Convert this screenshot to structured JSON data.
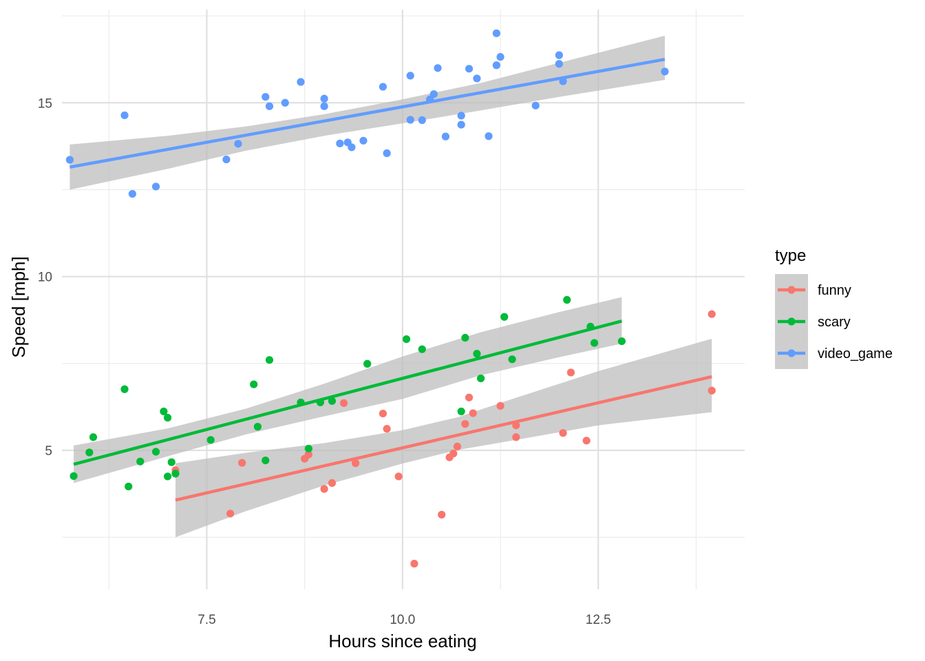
{
  "chart_data": {
    "type": "scatter",
    "title": "",
    "xlabel": "Hours since eating",
    "ylabel": "Speed [mph]",
    "xlim": [
      5.65,
      14.37
    ],
    "ylim": [
      1.0,
      17.68
    ],
    "x_ticks": [
      7.5,
      10.0,
      12.5
    ],
    "x_tick_labels": [
      "7.5",
      "10.0",
      "12.5"
    ],
    "y_ticks": [
      5,
      10,
      15
    ],
    "y_tick_labels": [
      "5",
      "10",
      "15"
    ],
    "grid": true,
    "legend": {
      "title": "type",
      "position": "right",
      "entries": [
        "funny",
        "scary",
        "video_game"
      ]
    },
    "confidence_band_color": "#bebebe",
    "series": [
      {
        "name": "funny",
        "color": "#F8766D",
        "points": [
          [
            7.1,
            4.43
          ],
          [
            7.8,
            3.18
          ],
          [
            7.95,
            4.64
          ],
          [
            8.75,
            4.76
          ],
          [
            8.8,
            4.88
          ],
          [
            9.0,
            3.89
          ],
          [
            9.1,
            4.06
          ],
          [
            9.25,
            6.36
          ],
          [
            9.4,
            4.63
          ],
          [
            9.75,
            6.06
          ],
          [
            9.8,
            5.62
          ],
          [
            9.95,
            4.25
          ],
          [
            10.15,
            1.74
          ],
          [
            10.5,
            3.15
          ],
          [
            10.6,
            4.8
          ],
          [
            10.65,
            4.91
          ],
          [
            10.7,
            5.11
          ],
          [
            10.8,
            5.76
          ],
          [
            10.85,
            6.52
          ],
          [
            10.9,
            6.07
          ],
          [
            11.25,
            6.28
          ],
          [
            11.45,
            5.72
          ],
          [
            11.45,
            5.38
          ],
          [
            12.05,
            5.5
          ],
          [
            12.15,
            7.24
          ],
          [
            12.35,
            5.28
          ],
          [
            13.95,
            8.92
          ],
          [
            13.95,
            6.72
          ]
        ],
        "fit_line": [
          [
            7.1,
            3.57
          ],
          [
            13.95,
            7.12
          ]
        ],
        "band_upper": [
          [
            7.1,
            4.63
          ],
          [
            8.0,
            4.93
          ],
          [
            9.0,
            5.21
          ],
          [
            10.0,
            5.58
          ],
          [
            10.7,
            5.95
          ],
          [
            11.5,
            6.55
          ],
          [
            12.5,
            7.28
          ],
          [
            13.95,
            8.21
          ]
        ],
        "band_lower": [
          [
            7.1,
            2.5
          ],
          [
            8.0,
            3.25
          ],
          [
            9.0,
            3.99
          ],
          [
            10.0,
            4.62
          ],
          [
            10.7,
            5.01
          ],
          [
            11.5,
            5.32
          ],
          [
            12.5,
            5.72
          ],
          [
            13.95,
            6.1
          ]
        ]
      },
      {
        "name": "scary",
        "color": "#00BA38",
        "points": [
          [
            5.8,
            4.26
          ],
          [
            6.0,
            4.94
          ],
          [
            6.05,
            5.38
          ],
          [
            6.45,
            6.76
          ],
          [
            6.5,
            3.96
          ],
          [
            6.65,
            4.68
          ],
          [
            6.85,
            4.96
          ],
          [
            6.95,
            6.12
          ],
          [
            7.0,
            5.94
          ],
          [
            7.0,
            4.25
          ],
          [
            7.05,
            4.66
          ],
          [
            7.1,
            4.33
          ],
          [
            7.55,
            5.3
          ],
          [
            8.1,
            6.9
          ],
          [
            8.15,
            5.68
          ],
          [
            8.25,
            4.71
          ],
          [
            8.3,
            7.6
          ],
          [
            8.7,
            6.38
          ],
          [
            8.8,
            5.05
          ],
          [
            8.95,
            6.38
          ],
          [
            9.1,
            6.42
          ],
          [
            9.55,
            7.49
          ],
          [
            10.05,
            8.2
          ],
          [
            10.25,
            7.91
          ],
          [
            10.75,
            6.12
          ],
          [
            10.8,
            8.24
          ],
          [
            10.95,
            7.78
          ],
          [
            11.0,
            7.07
          ],
          [
            11.3,
            8.84
          ],
          [
            11.4,
            7.62
          ],
          [
            12.1,
            9.33
          ],
          [
            12.4,
            8.56
          ],
          [
            12.45,
            8.09
          ],
          [
            12.8,
            8.14
          ]
        ],
        "fit_line": [
          [
            5.8,
            4.6
          ],
          [
            12.8,
            8.72
          ]
        ],
        "band_upper": [
          [
            5.8,
            5.14
          ],
          [
            7.0,
            5.63
          ],
          [
            8.0,
            6.2
          ],
          [
            9.0,
            6.92
          ],
          [
            10.0,
            7.7
          ],
          [
            11.0,
            8.4
          ],
          [
            12.0,
            8.98
          ],
          [
            12.8,
            9.41
          ]
        ],
        "band_lower": [
          [
            5.8,
            4.06
          ],
          [
            7.0,
            4.83
          ],
          [
            8.0,
            5.46
          ],
          [
            9.0,
            5.98
          ],
          [
            10.0,
            6.48
          ],
          [
            11.0,
            7.16
          ],
          [
            12.0,
            7.68
          ],
          [
            12.8,
            8.07
          ]
        ]
      },
      {
        "name": "video_game",
        "color": "#619CFF",
        "points": [
          [
            5.75,
            13.36
          ],
          [
            6.45,
            14.64
          ],
          [
            6.55,
            12.38
          ],
          [
            6.85,
            12.59
          ],
          [
            7.75,
            13.37
          ],
          [
            7.9,
            13.82
          ],
          [
            8.25,
            15.17
          ],
          [
            8.3,
            14.9
          ],
          [
            8.5,
            15.0
          ],
          [
            8.7,
            15.6
          ],
          [
            9.0,
            15.12
          ],
          [
            9.0,
            14.9
          ],
          [
            9.2,
            13.83
          ],
          [
            9.3,
            13.86
          ],
          [
            9.35,
            13.72
          ],
          [
            9.5,
            13.91
          ],
          [
            9.75,
            15.46
          ],
          [
            9.8,
            13.55
          ],
          [
            10.1,
            15.78
          ],
          [
            10.1,
            14.51
          ],
          [
            10.25,
            14.5
          ],
          [
            10.35,
            15.1
          ],
          [
            10.4,
            15.25
          ],
          [
            10.45,
            16.0
          ],
          [
            10.55,
            14.03
          ],
          [
            10.75,
            14.37
          ],
          [
            10.75,
            14.63
          ],
          [
            10.85,
            15.98
          ],
          [
            10.95,
            15.7
          ],
          [
            11.1,
            14.04
          ],
          [
            11.2,
            16.08
          ],
          [
            11.2,
            17.0
          ],
          [
            11.25,
            16.32
          ],
          [
            11.7,
            14.92
          ],
          [
            12.0,
            16.12
          ],
          [
            12.0,
            16.37
          ],
          [
            12.05,
            15.62
          ],
          [
            13.35,
            15.9
          ]
        ],
        "fit_line": [
          [
            5.75,
            13.15
          ],
          [
            13.35,
            16.25
          ]
        ],
        "band_upper": [
          [
            5.75,
            13.8
          ],
          [
            7.0,
            14.05
          ],
          [
            8.0,
            14.32
          ],
          [
            9.0,
            14.67
          ],
          [
            10.0,
            15.1
          ],
          [
            11.0,
            15.57
          ],
          [
            12.0,
            16.15
          ],
          [
            13.35,
            16.93
          ]
        ],
        "band_lower": [
          [
            5.75,
            12.5
          ],
          [
            7.0,
            13.1
          ],
          [
            8.0,
            13.62
          ],
          [
            9.0,
            14.05
          ],
          [
            10.0,
            14.41
          ],
          [
            11.0,
            14.78
          ],
          [
            12.0,
            15.17
          ],
          [
            13.35,
            15.66
          ]
        ]
      }
    ]
  }
}
